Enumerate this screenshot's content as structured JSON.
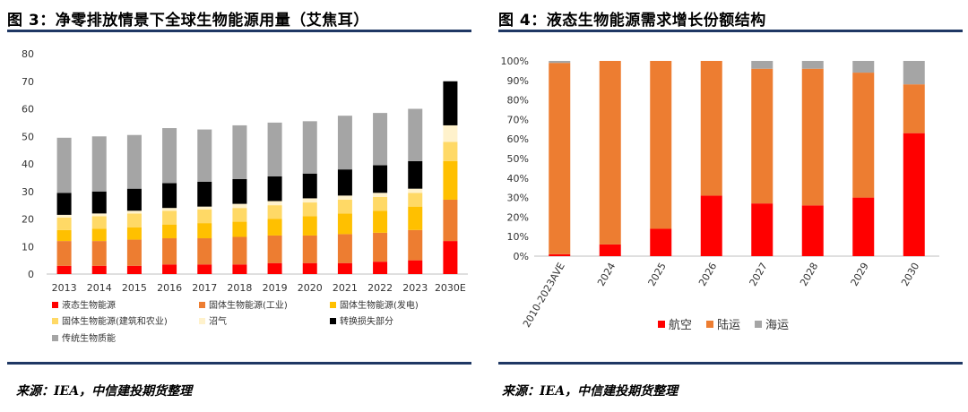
{
  "left": {
    "title": "图 3：净零排放情景下全球生物能源用量（艾焦耳）",
    "source": "来源：IEA，中信建投期货整理"
  },
  "right": {
    "title": "图 4：液态生物能源需求增长份额结构",
    "source": "来源：IEA，中信建投期货整理"
  },
  "chart_data": [
    {
      "type": "bar",
      "stacked": true,
      "categories": [
        "2013",
        "2014",
        "2015",
        "2016",
        "2017",
        "2018",
        "2019",
        "2020",
        "2021",
        "2022",
        "2023",
        "2030E"
      ],
      "ylim": [
        0,
        80
      ],
      "yticks": [
        0,
        10,
        20,
        30,
        40,
        50,
        60,
        70,
        80
      ],
      "grid": false,
      "legend_position": "bottom",
      "series": [
        {
          "name": "液态生物能源",
          "color": "#ff0000",
          "values": [
            3,
            3,
            3,
            3.5,
            3.5,
            3.5,
            4,
            4,
            4,
            4.5,
            5,
            12
          ]
        },
        {
          "name": "固体生物能源(工业)",
          "color": "#ed7d31",
          "values": [
            9,
            9,
            9.5,
            9.5,
            9.5,
            10,
            10,
            10,
            10.5,
            10.5,
            11,
            15
          ]
        },
        {
          "name": "固体生物能源(发电)",
          "color": "#ffc000",
          "values": [
            4,
            4.5,
            4.5,
            5,
            5.5,
            5.5,
            6,
            7,
            7.5,
            8,
            8.5,
            14
          ]
        },
        {
          "name": "固体生物能源(建筑和农业)",
          "color": "#ffd966",
          "values": [
            4.5,
            4.5,
            5,
            5,
            5,
            5,
            5,
            5,
            5,
            5,
            5,
            7
          ]
        },
        {
          "name": "沼气",
          "color": "#fff2cc",
          "values": [
            1,
            1,
            1,
            1,
            1,
            1.5,
            1.5,
            1.5,
            1.5,
            1.5,
            1.5,
            6
          ]
        },
        {
          "name": "转换损失部分",
          "color": "#000000",
          "values": [
            8,
            8,
            8,
            9,
            9,
            9,
            9,
            9,
            9.5,
            10,
            10,
            16
          ]
        },
        {
          "name": "传统生物质能",
          "color": "#a5a5a5",
          "values": [
            20,
            20,
            19.5,
            20,
            19,
            19.5,
            19.5,
            19,
            19.5,
            19,
            19,
            0
          ]
        }
      ]
    },
    {
      "type": "bar",
      "stacked": true,
      "percent": true,
      "categories": [
        "2010-2023AVE",
        "2024",
        "2025",
        "2026",
        "2027",
        "2028",
        "2029",
        "2030"
      ],
      "ylim": [
        0,
        100
      ],
      "yticks": [
        "0%",
        "10%",
        "20%",
        "30%",
        "40%",
        "50%",
        "60%",
        "70%",
        "80%",
        "90%",
        "100%"
      ],
      "grid": false,
      "legend_position": "bottom",
      "series": [
        {
          "name": "航空",
          "color": "#ff0000",
          "values": [
            1,
            6,
            14,
            31,
            27,
            26,
            30,
            63
          ]
        },
        {
          "name": "陆运",
          "color": "#ed7d31",
          "values": [
            98,
            94,
            86,
            69,
            69,
            70,
            64,
            25
          ]
        },
        {
          "name": "海运",
          "color": "#a5a5a5",
          "values": [
            1,
            0,
            0,
            0,
            4,
            4,
            6,
            12
          ]
        }
      ]
    }
  ]
}
